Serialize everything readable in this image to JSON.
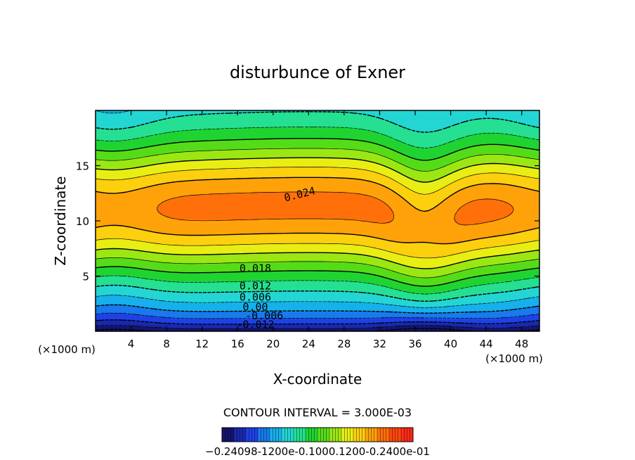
{
  "chart_data": {
    "type": "heatmap",
    "title": "disturbunce of Exner",
    "xlabel": "X-coordinate",
    "ylabel": "Z-coordinate",
    "x_unit": "(×1000 m)",
    "z_unit": "(×1000 m)",
    "xlim": [
      0,
      50
    ],
    "ylim": [
      0,
      20
    ],
    "x_ticks": [
      4,
      8,
      12,
      16,
      20,
      24,
      28,
      32,
      36,
      40,
      44,
      48
    ],
    "y_ticks": [
      5,
      10,
      15
    ],
    "x_tick_labels": [
      "4",
      "8",
      "12",
      "16",
      "20",
      "24",
      "28",
      "32",
      "36",
      "40",
      "44",
      "48"
    ],
    "y_tick_labels": [
      "5",
      "10",
      "15"
    ],
    "contour_interval_text": "CONTOUR INTERVAL = 3.000E-03",
    "contour_labels": [
      {
        "text": "0.024",
        "x": 23,
        "z": 12.4
      },
      {
        "text": "0.018",
        "x": 18,
        "z": 5.7
      },
      {
        "text": "0.012",
        "x": 18,
        "z": 4.1
      },
      {
        "text": "0.006",
        "x": 18,
        "z": 3.1
      },
      {
        "text": "0.00",
        "x": 18,
        "z": 2.2
      },
      {
        "text": "-0.006",
        "x": 19,
        "z": 1.4
      },
      {
        "text": "-0.012",
        "x": 18,
        "z": 0.6
      }
    ],
    "colorbar_labels_text": "−0.24098-1200e-0.1000.1200-0.2400e-01",
    "colorbar_range": [
      -0.024,
      0.024
    ]
  }
}
